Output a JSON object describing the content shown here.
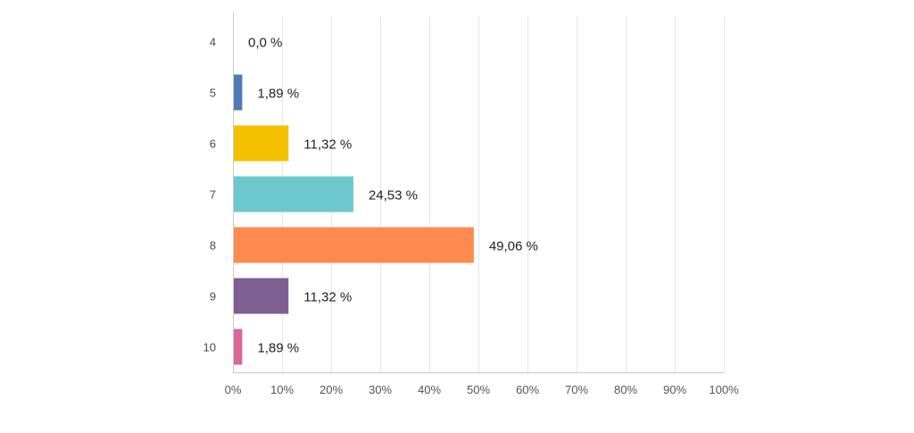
{
  "chart_data": {
    "type": "bar",
    "orientation": "horizontal",
    "categories": [
      "4",
      "5",
      "6",
      "7",
      "8",
      "9",
      "10"
    ],
    "values": [
      0.0,
      1.89,
      11.32,
      24.53,
      49.06,
      11.32,
      1.89
    ],
    "value_labels": [
      "0,0 %",
      "1,89 %",
      "11,32 %",
      "24,53 %",
      "49,06 %",
      "11,32 %",
      "1,89 %"
    ],
    "colors": [
      "#4e7ab6",
      "#4e7ab6",
      "#f5c000",
      "#6cc8cc",
      "#ff8a50",
      "#7f5e92",
      "#d9679a"
    ],
    "xlim": [
      0,
      100
    ],
    "x_ticks": [
      "0%",
      "10%",
      "20%",
      "30%",
      "40%",
      "50%",
      "60%",
      "70%",
      "80%",
      "90%",
      "100%"
    ],
    "grid": true,
    "title": "",
    "xlabel": "",
    "ylabel": ""
  }
}
